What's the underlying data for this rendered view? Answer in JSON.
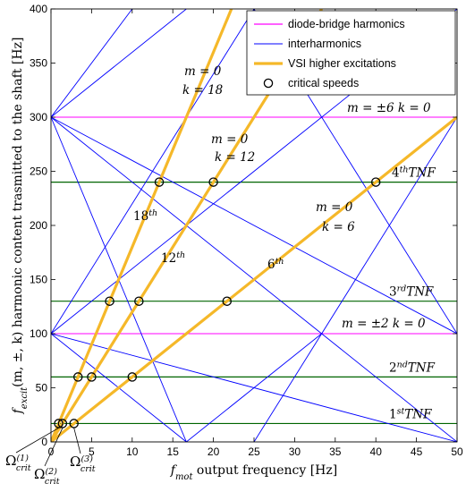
{
  "chart_data": {
    "type": "line",
    "xlim": [
      0,
      50
    ],
    "ylim": [
      0,
      400
    ],
    "xticks": [
      "0",
      "5",
      "10",
      "15",
      "20",
      "25",
      "30",
      "35",
      "40",
      "45",
      "50"
    ],
    "yticks": [
      "0",
      "50",
      "100",
      "150",
      "200",
      "250",
      "300",
      "350",
      "400"
    ],
    "xlabel": {
      "main": "f",
      "sub": "mot",
      "rest": " output frequency [Hz]"
    },
    "ylabel": {
      "main": "f",
      "sub": "excit",
      "rest": "(m, ±, k) harmonic content trasmitted to the shaft [Hz]"
    },
    "grid": false,
    "legend_position": "top-right",
    "colors": {
      "diode": "#ff00ff",
      "inter": "#0000ff",
      "vsi": "#f5b829",
      "tnf": "#006400",
      "critical": "#000000"
    },
    "legend": [
      {
        "label": "diode-bridge harmonics",
        "style": "magenta-line"
      },
      {
        "label": "interharmonics",
        "style": "blue-line"
      },
      {
        "label": "VSI higher excitations",
        "style": "orange-thick-line"
      },
      {
        "label": "critical speeds",
        "style": "circle-marker"
      }
    ],
    "diode_bridge_harmonics": [
      {
        "y": 100,
        "label": "m = ±2  k = 0"
      },
      {
        "y": 300,
        "label": "m = ±6  k = 0"
      }
    ],
    "tnf_lines": [
      {
        "y": 17,
        "label_main": "1",
        "label_sup": "st",
        "label_rest": "TNF"
      },
      {
        "y": 60,
        "label_main": "2",
        "label_sup": "nd",
        "label_rest": "TNF"
      },
      {
        "y": 130,
        "label_main": "3",
        "label_sup": "rd",
        "label_rest": "TNF"
      },
      {
        "y": 240,
        "label_main": "4",
        "label_sup": "th",
        "label_rest": "TNF"
      }
    ],
    "interharmonic_segments": [
      {
        "x": [
          0,
          50
        ],
        "y": [
          100,
          400
        ]
      },
      {
        "x": [
          0,
          50
        ],
        "y": [
          100,
          0
        ]
      },
      {
        "x": [
          0,
          50
        ],
        "y": [
          300,
          100
        ]
      },
      {
        "x": [
          0,
          33.33
        ],
        "y": [
          300,
          100
        ]
      },
      {
        "x": [
          0,
          16.67
        ],
        "y": [
          300,
          0
        ]
      },
      {
        "x": [
          0,
          16.67
        ],
        "y": [
          100,
          0
        ]
      },
      {
        "x": [
          0,
          25
        ],
        "y": [
          100,
          400
        ]
      },
      {
        "x": [
          0,
          16.67
        ],
        "y": [
          300,
          400
        ]
      },
      {
        "x": [
          0,
          10
        ],
        "y": [
          300,
          400
        ]
      },
      {
        "x": [
          25,
          50
        ],
        "y": [
          400,
          100
        ]
      },
      {
        "x": [
          33.33,
          50
        ],
        "y": [
          100,
          0
        ]
      },
      {
        "x": [
          25,
          33.33
        ],
        "y": [
          0,
          100
        ]
      },
      {
        "x": [
          16.67,
          33.33
        ],
        "y": [
          0,
          100
        ]
      },
      {
        "x": [
          33.33,
          50
        ],
        "y": [
          100,
          300
        ]
      }
    ],
    "vsi_series": [
      {
        "k": 6,
        "x": [
          0,
          50
        ],
        "y": [
          0,
          300
        ],
        "label_main": "6",
        "label_sup": "th",
        "annot_m": "m = 0",
        "annot_k": "k = 6"
      },
      {
        "k": 12,
        "x": [
          0,
          33.33
        ],
        "y": [
          0,
          400
        ],
        "label_main": "12",
        "label_sup": "th",
        "annot_m": "m = 0",
        "annot_k": "k = 12"
      },
      {
        "k": 18,
        "x": [
          0,
          22.22
        ],
        "y": [
          0,
          400
        ],
        "label_main": "18",
        "label_sup": "th",
        "annot_m": "m = 0",
        "annot_k": "k = 18"
      }
    ],
    "critical_speeds": [
      {
        "x": 13.33,
        "y": 240
      },
      {
        "x": 20,
        "y": 240
      },
      {
        "x": 40,
        "y": 240
      },
      {
        "x": 7.22,
        "y": 130
      },
      {
        "x": 10.83,
        "y": 130
      },
      {
        "x": 21.67,
        "y": 130
      },
      {
        "x": 3.33,
        "y": 60
      },
      {
        "x": 5,
        "y": 60
      },
      {
        "x": 10,
        "y": 60
      },
      {
        "x": 0.94,
        "y": 17
      },
      {
        "x": 1.42,
        "y": 17
      },
      {
        "x": 2.83,
        "y": 17
      }
    ],
    "critical_labels": [
      {
        "main": "Ω",
        "sub": "crit",
        "sup": "(1)"
      },
      {
        "main": "Ω",
        "sub": "crit",
        "sup": "(2)"
      },
      {
        "main": "Ω",
        "sub": "crit",
        "sup": "(3)"
      }
    ]
  }
}
